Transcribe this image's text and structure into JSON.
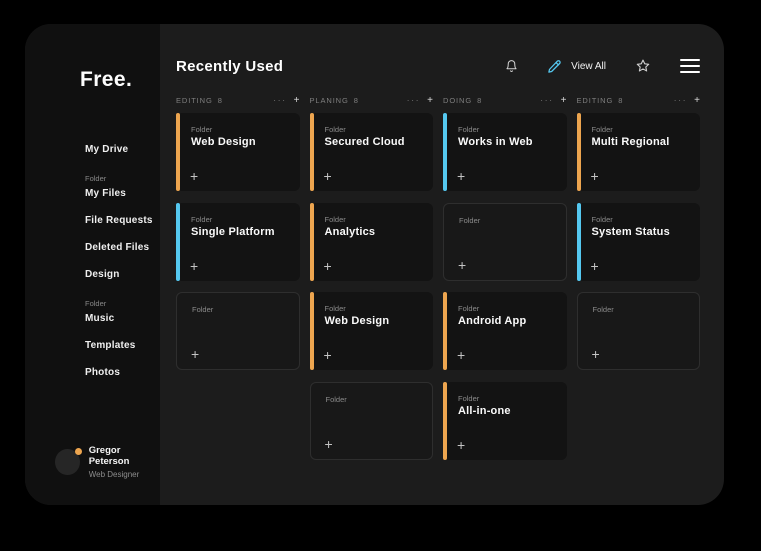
{
  "sidebar": {
    "logo": "Free.",
    "items": [
      {
        "label": "My Drive"
      },
      {
        "caption": "Folder",
        "label": "My Files"
      },
      {
        "label": "File Requests"
      },
      {
        "label": "Deleted Files"
      },
      {
        "label": "Design"
      },
      {
        "caption": "Folder",
        "label": "Music"
      },
      {
        "label": "Templates"
      },
      {
        "label": "Photos"
      }
    ],
    "user": {
      "name": "Gregor Peterson",
      "role": "Web Designer"
    }
  },
  "header": {
    "title": "Recently Used",
    "view_all_label": "View All"
  },
  "board": {
    "accent_colors": {
      "orange": "#eda54f",
      "blue": "#55c8f0"
    },
    "card_tag": "Folder",
    "plus_label": "+",
    "menu_dots": "···",
    "add_label": "+",
    "columns": [
      {
        "label": "EDITING",
        "count": "8",
        "cards": [
          {
            "type": "filled",
            "accent": "orange",
            "name": "Web Design"
          },
          {
            "type": "filled",
            "accent": "blue",
            "name": "Single Platform"
          },
          {
            "type": "empty"
          }
        ]
      },
      {
        "label": "PLANING",
        "count": "8",
        "cards": [
          {
            "type": "filled",
            "accent": "orange",
            "name": "Secured Cloud"
          },
          {
            "type": "filled",
            "accent": "orange",
            "name": "Analytics"
          },
          {
            "type": "filled",
            "accent": "orange",
            "name": "Web Design"
          },
          {
            "type": "empty"
          }
        ]
      },
      {
        "label": "DOING",
        "count": "8",
        "cards": [
          {
            "type": "filled",
            "accent": "blue",
            "name": "Works in Web"
          },
          {
            "type": "empty"
          },
          {
            "type": "filled",
            "accent": "orange",
            "name": "Android App"
          },
          {
            "type": "filled",
            "accent": "orange",
            "name": "All-in-one"
          }
        ]
      },
      {
        "label": "EDITING",
        "count": "8",
        "cards": [
          {
            "type": "filled",
            "accent": "orange",
            "name": "Multi Regional"
          },
          {
            "type": "filled",
            "accent": "blue",
            "name": "System Status"
          },
          {
            "type": "empty"
          }
        ]
      }
    ]
  }
}
